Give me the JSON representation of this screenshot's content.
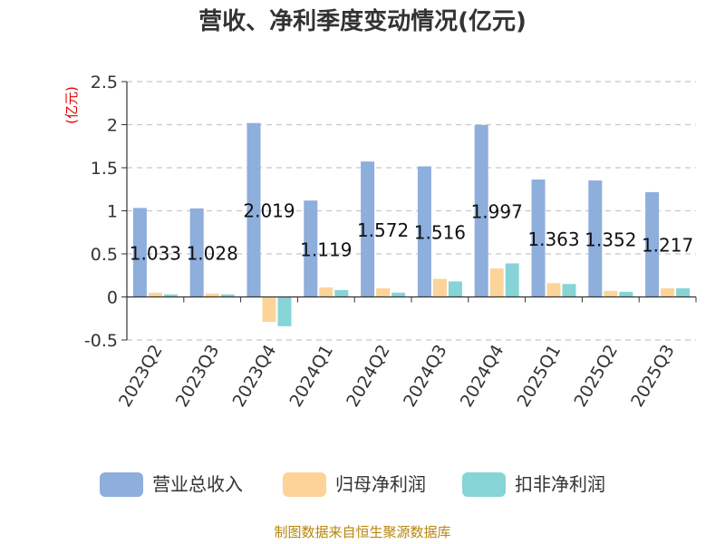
{
  "chart_data": {
    "type": "bar",
    "title": "营收、净利季度变动情况(亿元)",
    "ylabel": "(亿元)",
    "ylim": [
      -0.5,
      2.5
    ],
    "yticks": [
      -0.5,
      0,
      0.5,
      1,
      1.5,
      2,
      2.5
    ],
    "ytick_labels": [
      "-0.5",
      "0",
      "0.5",
      "1",
      "1.5",
      "2",
      "2.5"
    ],
    "grid": true,
    "legend_position": "bottom",
    "categories": [
      "2023Q2",
      "2023Q3",
      "2023Q4",
      "2024Q1",
      "2024Q2",
      "2024Q3",
      "2024Q4",
      "2025Q1",
      "2025Q2",
      "2025Q3"
    ],
    "series": [
      {
        "name": "营业总收入",
        "color": "#8eaedc",
        "values": [
          1.033,
          1.028,
          2.019,
          1.119,
          1.572,
          1.516,
          1.997,
          1.363,
          1.352,
          1.217
        ],
        "labels": [
          "1.033",
          "1.028",
          "2.019",
          "1.119",
          "1.572",
          "1.516",
          "1.997",
          "1.363",
          "1.352",
          "1.217"
        ]
      },
      {
        "name": "归母净利润",
        "color": "#fcd49a",
        "values": [
          0.05,
          0.04,
          -0.29,
          0.11,
          0.1,
          0.21,
          0.33,
          0.16,
          0.07,
          0.1
        ]
      },
      {
        "name": "扣非净利润",
        "color": "#87d4d6",
        "values": [
          0.03,
          0.03,
          -0.34,
          0.08,
          0.05,
          0.18,
          0.39,
          0.15,
          0.06,
          0.1
        ]
      }
    ],
    "source": "制图数据来自恒生聚源数据库"
  }
}
